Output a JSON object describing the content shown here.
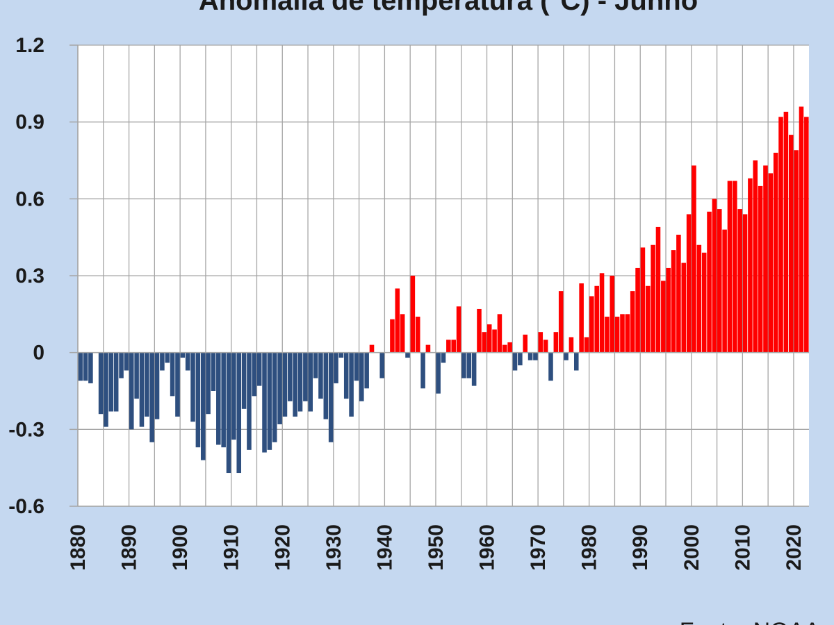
{
  "chart_data": {
    "type": "bar",
    "title": "Anomalia de temperatura (°C) - Junho",
    "source": "Fonte: NOAA",
    "xlabel": "",
    "ylabel": "",
    "ylim": [
      -0.6,
      1.2
    ],
    "yticks": [
      1.2,
      0.9,
      0.6,
      0.3,
      0,
      -0.3,
      -0.6
    ],
    "ytick_labels": [
      "1.2",
      "0.9",
      "0.6",
      "0.3",
      "0",
      "-0.3",
      "-0.6"
    ],
    "xticks": [
      1880,
      1890,
      1900,
      1910,
      1920,
      1930,
      1940,
      1950,
      1960,
      1970,
      1980,
      1990,
      2000,
      2010,
      2020
    ],
    "xtick_labels": [
      "1880",
      "1890",
      "1900",
      "1910",
      "1920",
      "1930",
      "1940",
      "1950",
      "1960",
      "1970",
      "1980",
      "1990",
      "2000",
      "2010",
      "2020"
    ],
    "grid": true,
    "colors": {
      "positive": "#ff0000",
      "negative": "#2e4f7f",
      "grid": "#a6a6a6",
      "plot_bg": "#ffffff",
      "page_bg": "#c5d8f0"
    },
    "x_start": 1880,
    "values": [
      -0.11,
      -0.11,
      -0.12,
      0.0,
      -0.24,
      -0.29,
      -0.23,
      -0.23,
      -0.1,
      -0.07,
      -0.3,
      -0.18,
      -0.29,
      -0.25,
      -0.35,
      -0.26,
      -0.07,
      -0.04,
      -0.17,
      -0.25,
      -0.02,
      -0.07,
      -0.27,
      -0.37,
      -0.42,
      -0.24,
      -0.15,
      -0.36,
      -0.37,
      -0.47,
      -0.34,
      -0.47,
      -0.22,
      -0.38,
      -0.17,
      -0.13,
      -0.39,
      -0.38,
      -0.35,
      -0.28,
      -0.25,
      -0.19,
      -0.25,
      -0.23,
      -0.19,
      -0.23,
      -0.1,
      -0.18,
      -0.26,
      -0.35,
      -0.12,
      -0.02,
      -0.18,
      -0.25,
      -0.11,
      -0.19,
      -0.14,
      0.03,
      0.0,
      -0.1,
      0.0,
      0.13,
      0.25,
      0.15,
      -0.02,
      0.3,
      0.14,
      -0.14,
      0.03,
      0.0,
      -0.16,
      -0.04,
      0.05,
      0.05,
      0.18,
      -0.1,
      -0.1,
      -0.13,
      0.17,
      0.08,
      0.11,
      0.09,
      0.15,
      0.03,
      0.04,
      -0.07,
      -0.05,
      0.07,
      -0.03,
      -0.03,
      0.08,
      0.05,
      -0.11,
      0.08,
      0.24,
      -0.03,
      0.06,
      -0.07,
      0.27,
      0.06,
      0.22,
      0.26,
      0.31,
      0.14,
      0.3,
      0.14,
      0.15,
      0.15,
      0.24,
      0.33,
      0.41,
      0.26,
      0.42,
      0.49,
      0.28,
      0.33,
      0.4,
      0.46,
      0.35,
      0.54,
      0.73,
      0.42,
      0.39,
      0.55,
      0.6,
      0.56,
      0.48,
      0.67,
      0.67,
      0.56,
      0.54,
      0.68,
      0.75,
      0.65,
      0.73,
      0.7,
      0.78,
      0.92,
      0.94,
      0.85,
      0.79,
      0.96,
      0.92
    ]
  }
}
